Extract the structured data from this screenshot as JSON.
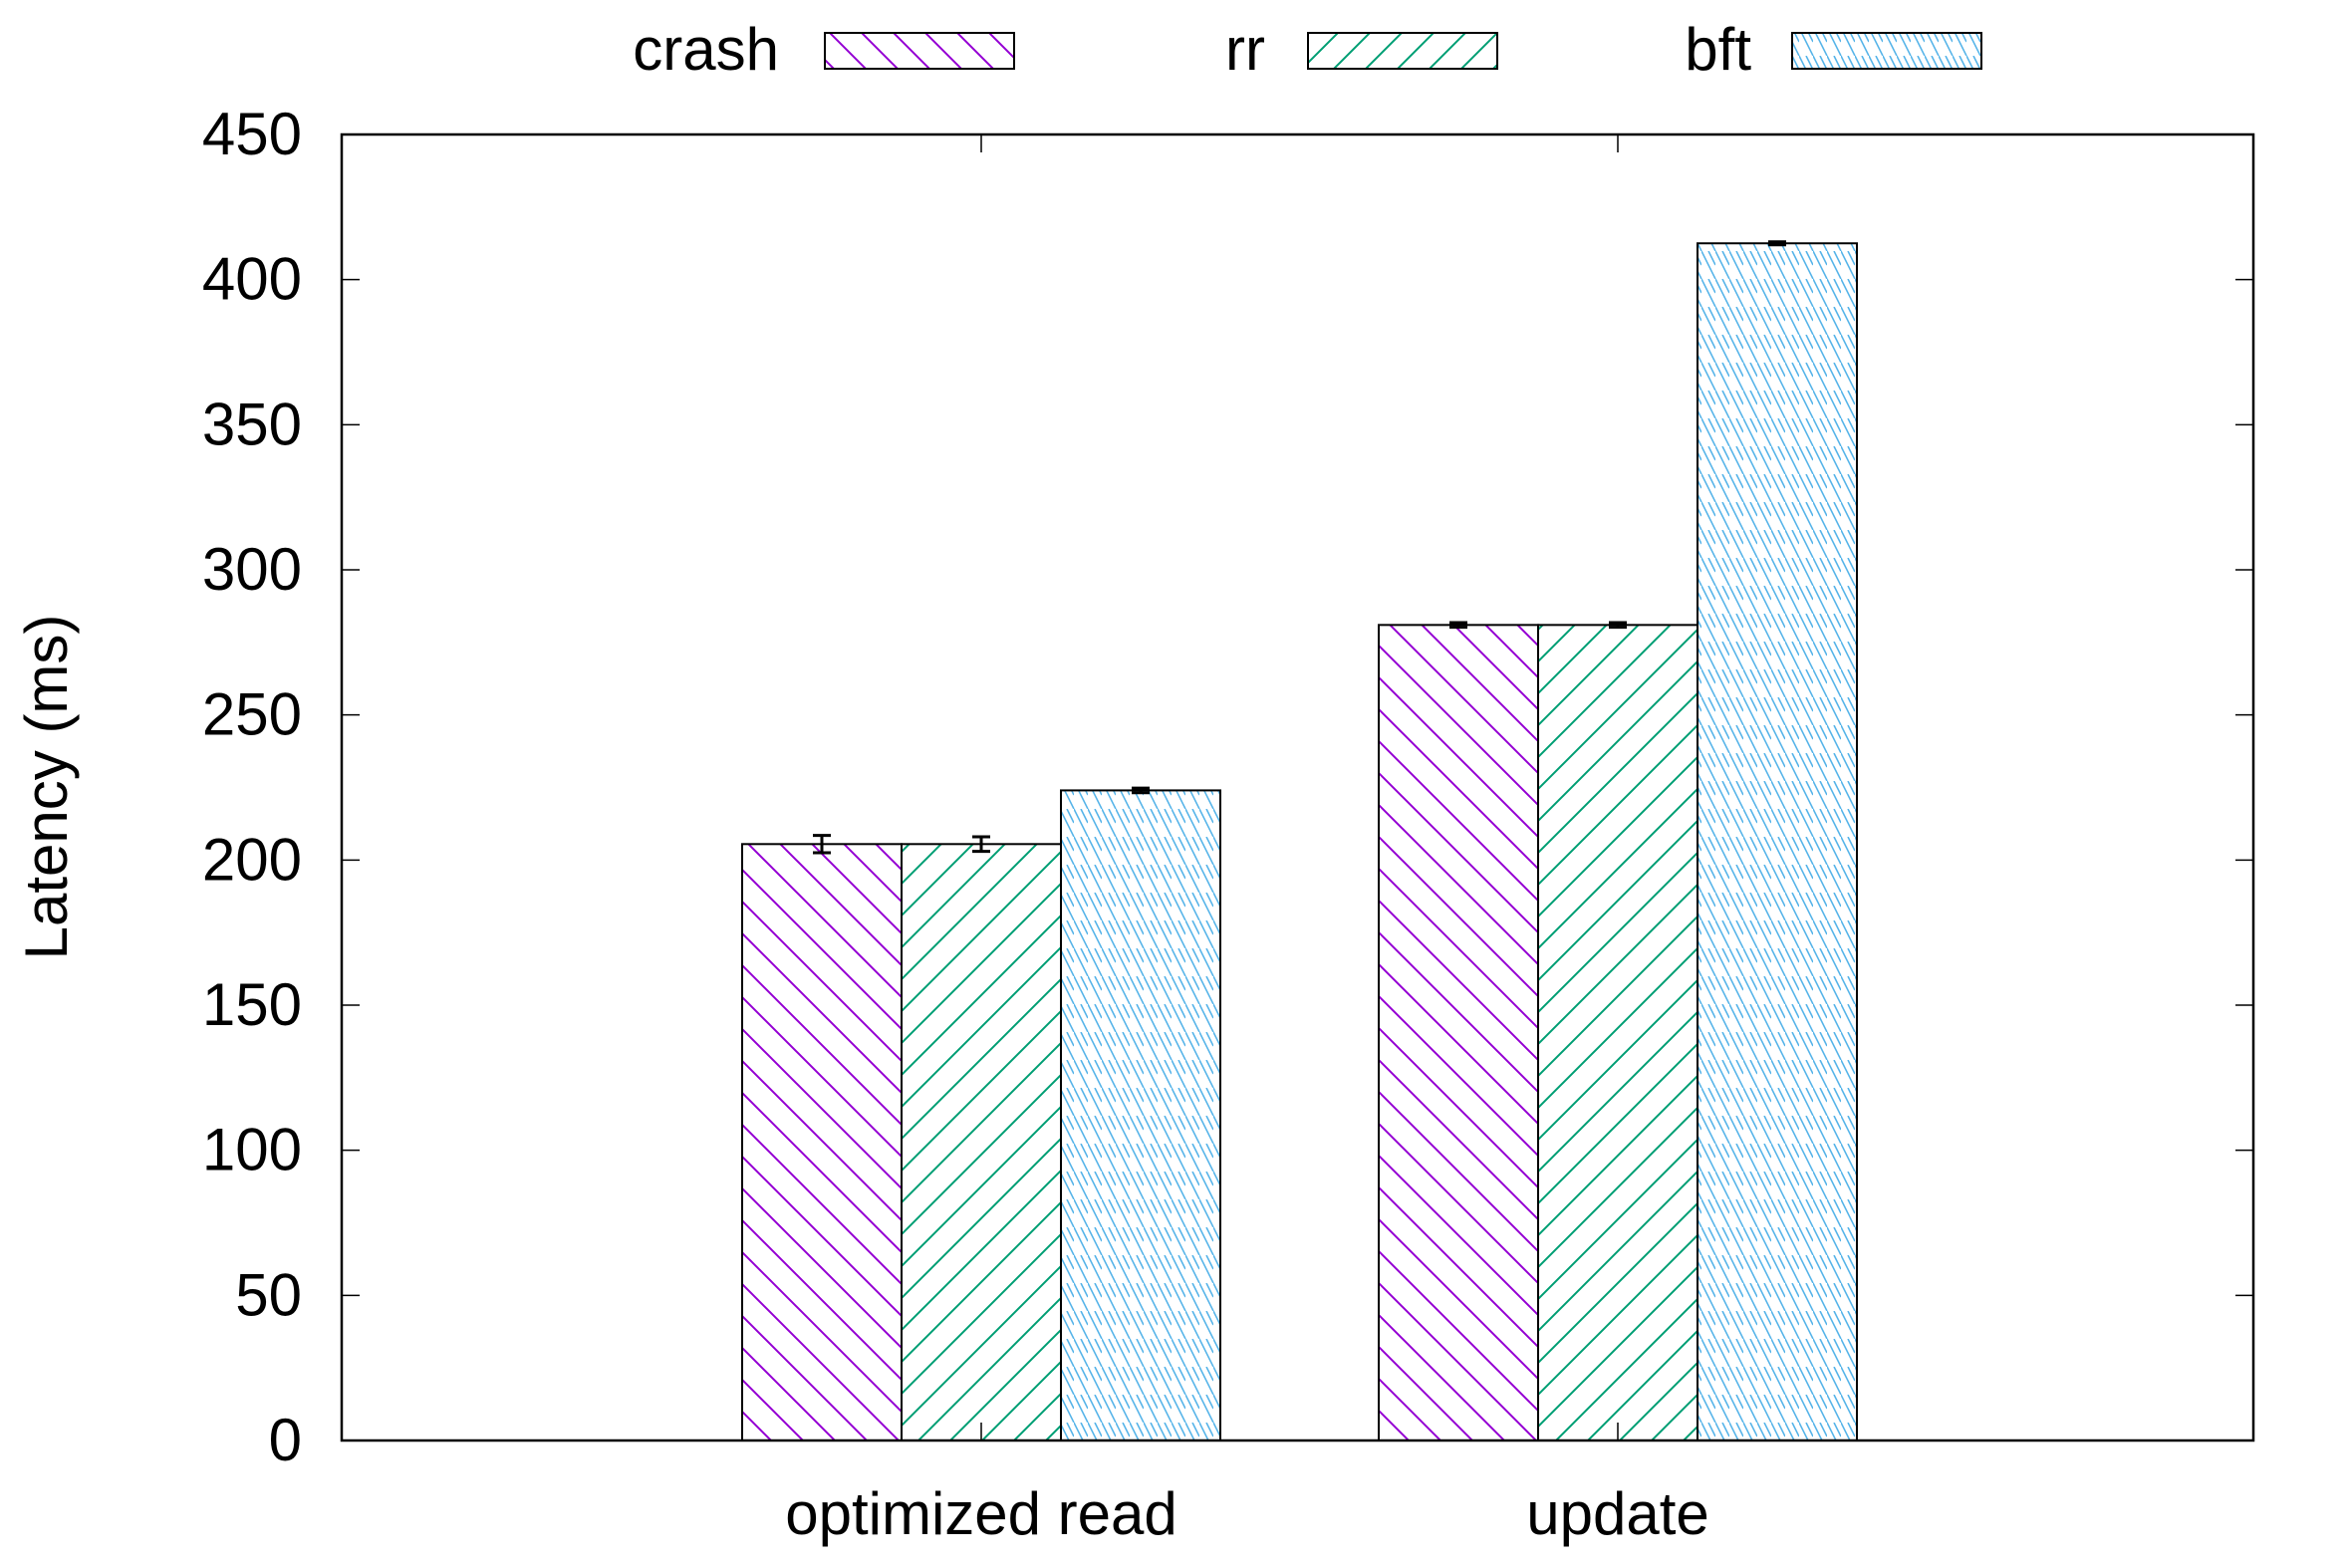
{
  "chart_data": {
    "type": "bar",
    "title": "",
    "xlabel": "",
    "ylabel": "Latency (ms)",
    "ylim": [
      0,
      450
    ],
    "yticks": [
      0,
      50,
      100,
      150,
      200,
      250,
      300,
      350,
      400,
      450
    ],
    "categories": [
      "optimized read",
      "update"
    ],
    "legend_position": "top",
    "grid": false,
    "series": [
      {
        "name": "crash",
        "values": [
          205.5,
          281
        ],
        "errors": [
          3,
          0.8
        ],
        "color": "#9400d3",
        "hatch": "backslash"
      },
      {
        "name": "rr",
        "values": [
          205.5,
          281
        ],
        "errors": [
          2.5,
          0.8
        ],
        "color": "#009e73",
        "hatch": "slash"
      },
      {
        "name": "bft",
        "values": [
          224,
          412.5
        ],
        "errors": [
          0.8,
          0.5
        ],
        "color": "#56b4e9",
        "hatch": "backslash-dense"
      }
    ]
  }
}
